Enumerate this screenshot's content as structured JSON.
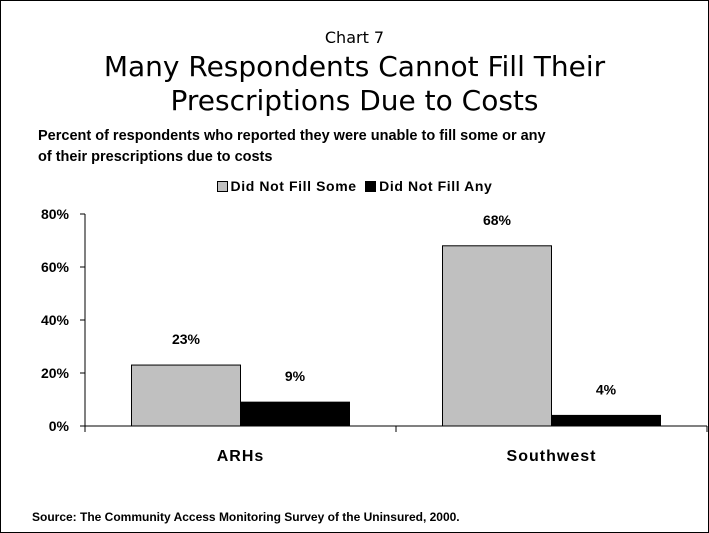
{
  "chart_label": "Chart 7",
  "title_line1": "Many Respondents Cannot Fill Their",
  "title_line2": "Prescriptions Due to Costs",
  "subtitle_line1": "Percent of respondents who reported they were unable to fill some or any",
  "subtitle_line2": "of their prescriptions due to costs",
  "source": "Source: The Community Access Monitoring Survey of the Uninsured, 2000.",
  "colors": {
    "some": "#c0c0c0",
    "any": "#000000",
    "axis": "#000000"
  },
  "chart_data": {
    "type": "bar",
    "categories": [
      "ARHs",
      "Southwest"
    ],
    "series": [
      {
        "name": "Did Not Fill Some",
        "values": [
          23,
          68
        ],
        "labels": [
          "23%",
          "68%"
        ]
      },
      {
        "name": "Did Not Fill Any",
        "values": [
          9,
          4
        ],
        "labels": [
          "9%",
          "4%"
        ]
      }
    ],
    "ylim": [
      0,
      80
    ],
    "yticks": [
      0,
      20,
      40,
      60,
      80
    ],
    "ytick_labels": [
      "0%",
      "20%",
      "40%",
      "60%",
      "80%"
    ],
    "legend": "top",
    "grid": false
  }
}
